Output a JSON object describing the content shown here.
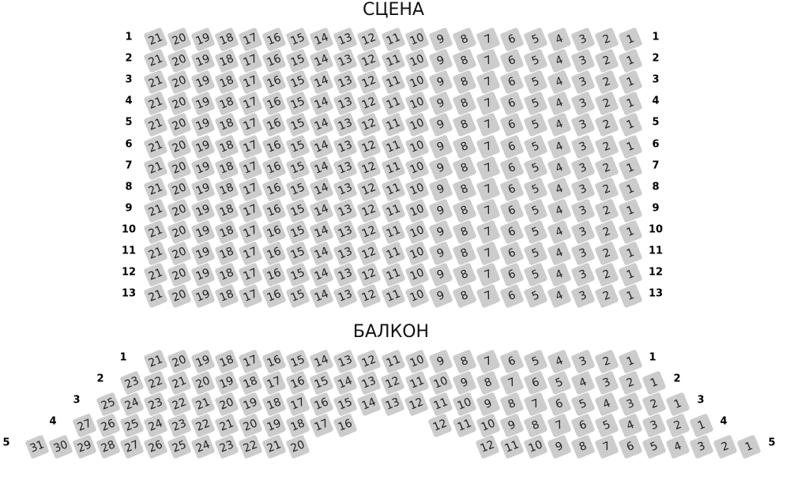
{
  "stage_title": "СЦЕНА",
  "balcony_title": "БАЛКОН",
  "colors": {
    "seat": "#cccccc",
    "seat_text": "#222222",
    "label": "#000000"
  },
  "stalls": {
    "rows": [
      {
        "label": "1",
        "seats": [
          21,
          20,
          19,
          18,
          17,
          16,
          15,
          14,
          13,
          12,
          11,
          10,
          9,
          8,
          7,
          6,
          5,
          4,
          3,
          2,
          1
        ]
      },
      {
        "label": "2",
        "seats": [
          21,
          20,
          19,
          18,
          17,
          16,
          15,
          14,
          13,
          12,
          11,
          10,
          9,
          8,
          7,
          6,
          5,
          4,
          3,
          2,
          1
        ]
      },
      {
        "label": "3",
        "seats": [
          21,
          20,
          19,
          18,
          17,
          16,
          15,
          14,
          13,
          12,
          11,
          10,
          9,
          8,
          7,
          6,
          5,
          4,
          3,
          2,
          1
        ]
      },
      {
        "label": "4",
        "seats": [
          21,
          20,
          19,
          18,
          17,
          16,
          15,
          14,
          13,
          12,
          11,
          10,
          9,
          8,
          7,
          6,
          5,
          4,
          3,
          2,
          1
        ]
      },
      {
        "label": "5",
        "seats": [
          21,
          20,
          19,
          18,
          17,
          16,
          15,
          14,
          13,
          12,
          11,
          10,
          9,
          8,
          7,
          6,
          5,
          4,
          3,
          2,
          1
        ]
      },
      {
        "label": "6",
        "seats": [
          21,
          20,
          19,
          18,
          17,
          16,
          15,
          14,
          13,
          12,
          11,
          10,
          9,
          8,
          7,
          6,
          5,
          4,
          3,
          2,
          1
        ]
      },
      {
        "label": "7",
        "seats": [
          21,
          20,
          19,
          18,
          17,
          16,
          15,
          14,
          13,
          12,
          11,
          10,
          9,
          8,
          7,
          6,
          5,
          4,
          3,
          2,
          1
        ]
      },
      {
        "label": "8",
        "seats": [
          21,
          20,
          19,
          18,
          17,
          16,
          15,
          14,
          13,
          12,
          11,
          10,
          9,
          8,
          7,
          6,
          5,
          4,
          3,
          2,
          1
        ]
      },
      {
        "label": "9",
        "seats": [
          21,
          20,
          19,
          18,
          17,
          16,
          15,
          14,
          13,
          12,
          11,
          10,
          9,
          8,
          7,
          6,
          5,
          4,
          3,
          2,
          1
        ]
      },
      {
        "label": "10",
        "seats": [
          21,
          20,
          19,
          18,
          17,
          16,
          15,
          14,
          13,
          12,
          11,
          10,
          9,
          8,
          7,
          6,
          5,
          4,
          3,
          2,
          1
        ]
      },
      {
        "label": "11",
        "seats": [
          21,
          20,
          19,
          18,
          17,
          16,
          15,
          14,
          13,
          12,
          11,
          10,
          9,
          8,
          7,
          6,
          5,
          4,
          3,
          2,
          1
        ]
      },
      {
        "label": "12",
        "seats": [
          21,
          20,
          19,
          18,
          17,
          16,
          15,
          14,
          13,
          12,
          11,
          10,
          9,
          8,
          7,
          6,
          5,
          4,
          3,
          2,
          1
        ]
      },
      {
        "label": "13",
        "seats": [
          21,
          20,
          19,
          18,
          17,
          16,
          15,
          14,
          13,
          12,
          11,
          10,
          9,
          8,
          7,
          6,
          5,
          4,
          3,
          2,
          1
        ]
      }
    ]
  },
  "balcony": {
    "rows": [
      {
        "label": "1",
        "seats": [
          21,
          20,
          19,
          18,
          17,
          16,
          15,
          14,
          13,
          12,
          11,
          10,
          9,
          8,
          7,
          6,
          5,
          4,
          3,
          2,
          1
        ]
      },
      {
        "label": "2",
        "seats": [
          23,
          22,
          21,
          20,
          19,
          18,
          17,
          16,
          15,
          14,
          13,
          12,
          11,
          10,
          9,
          8,
          7,
          6,
          5,
          4,
          3,
          2,
          1
        ]
      },
      {
        "label": "3",
        "seats": [
          25,
          24,
          23,
          22,
          21,
          20,
          19,
          18,
          17,
          16,
          15,
          14,
          13,
          12,
          11,
          10,
          9,
          8,
          7,
          6,
          5,
          4,
          3,
          2,
          1
        ]
      },
      {
        "label": "4",
        "seats": [
          27,
          26,
          25,
          24,
          23,
          22,
          21,
          20,
          19,
          18,
          17,
          16,
          12,
          11,
          10,
          9,
          8,
          7,
          6,
          5,
          4,
          3,
          2,
          1
        ]
      },
      {
        "label": "5",
        "seats": [
          31,
          30,
          29,
          28,
          27,
          26,
          25,
          24,
          23,
          22,
          21,
          20,
          12,
          11,
          10,
          9,
          8,
          7,
          6,
          5,
          4,
          3,
          2,
          1
        ]
      }
    ]
  }
}
